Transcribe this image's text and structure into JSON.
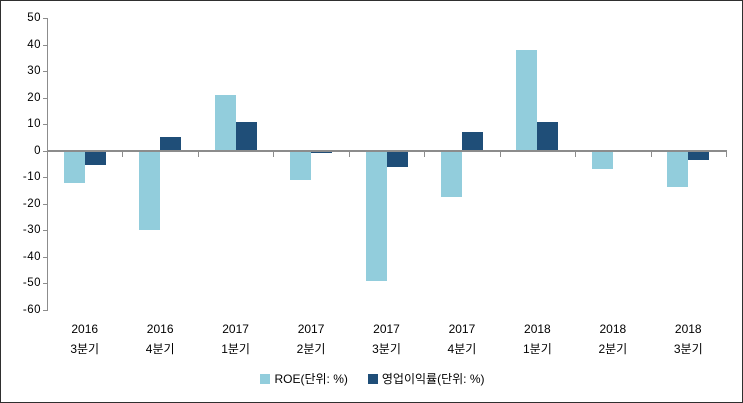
{
  "chart_data": {
    "type": "bar",
    "title": "",
    "xlabel": "",
    "ylabel": "",
    "categories": [
      {
        "line1": "2016",
        "line2": "3분기"
      },
      {
        "line1": "2016",
        "line2": "4분기"
      },
      {
        "line1": "2017",
        "line2": "1분기"
      },
      {
        "line1": "2017",
        "line2": "2분기"
      },
      {
        "line1": "2017",
        "line2": "3분기"
      },
      {
        "line1": "2017",
        "line2": "4분기"
      },
      {
        "line1": "2018",
        "line2": "1분기"
      },
      {
        "line1": "2018",
        "line2": "2분기"
      },
      {
        "line1": "2018",
        "line2": "3분기"
      }
    ],
    "series": [
      {
        "key": "roe",
        "name": "ROE(단위: %)",
        "color": "#92CDDC",
        "values": [
          -12,
          -30,
          21,
          -11,
          -49,
          -17.5,
          38,
          -7,
          -13.5
        ]
      },
      {
        "key": "opm",
        "name": "영업이익률(단위: %)",
        "color": "#1F4E78",
        "values": [
          -5.5,
          5,
          11,
          -1,
          -6,
          7,
          11,
          0,
          -3.5
        ]
      }
    ],
    "yticks": [
      50,
      40,
      30,
      20,
      10,
      0,
      -10,
      -20,
      -30,
      -40,
      -50,
      -60
    ],
    "ylim": [
      -60,
      50
    ],
    "grid": false,
    "legend_position": "bottom",
    "colors": {
      "axis": "#8c8c8c",
      "text": "#000000",
      "background": "#ffffff"
    }
  }
}
